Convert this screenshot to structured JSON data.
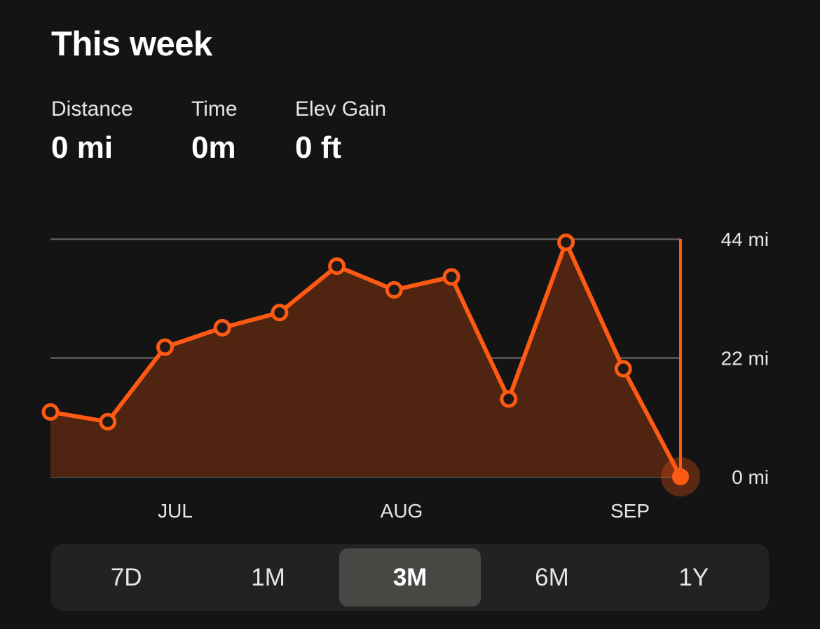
{
  "header": {
    "title": "This week"
  },
  "stats": [
    {
      "label": "Distance",
      "value": "0 mi"
    },
    {
      "label": "Time",
      "value": "0m"
    },
    {
      "label": "Elev Gain",
      "value": "0 ft"
    }
  ],
  "chart_data": {
    "type": "area",
    "series": [
      {
        "values": [
          12,
          10.2,
          24,
          27.6,
          30.4,
          39,
          34.6,
          37,
          14.4,
          43.4,
          20,
          0
        ]
      }
    ],
    "x_labels": [
      "JUL",
      "AUG",
      "SEP"
    ],
    "y_ticks": [
      "0 mi",
      "22 mi",
      "44 mi"
    ],
    "ylim": [
      0,
      44
    ],
    "grid": true,
    "colors": {
      "line": "#ff5a14",
      "fill": "#4f2410",
      "grid": "#5a5a5a"
    }
  },
  "range_selector": {
    "options": [
      "7D",
      "1M",
      "3M",
      "6M",
      "1Y"
    ],
    "selected": "3M"
  }
}
